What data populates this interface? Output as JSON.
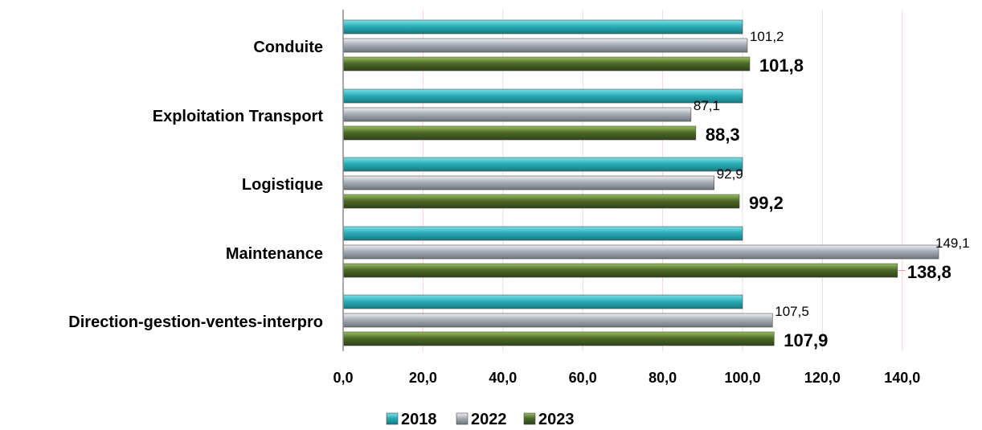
{
  "chart_data": {
    "type": "bar",
    "orientation": "horizontal",
    "categories": [
      "Conduite",
      "Exploitation Transport",
      "Logistique",
      "Maintenance",
      "Direction-gestion-ventes-interpro"
    ],
    "series": [
      {
        "name": "2018",
        "values": [
          100,
          100,
          100,
          100,
          100
        ],
        "color": "#2aaeb8"
      },
      {
        "name": "2022",
        "values": [
          101.2,
          87.1,
          92.9,
          149.1,
          107.5
        ],
        "color": "#a7aeb6",
        "value_labels": [
          "101,2",
          "87,1",
          "92,9",
          "149,1",
          "107,5"
        ]
      },
      {
        "name": "2023",
        "values": [
          101.8,
          88.3,
          99.2,
          138.8,
          107.9
        ],
        "color": "#4e6b2a",
        "value_labels": [
          "101,8",
          "88,3",
          "99,2",
          "138,8",
          "107,9"
        ]
      }
    ],
    "x_ticks": [
      "0,0",
      "20,0",
      "40,0",
      "60,0",
      "80,0",
      "100,0",
      "120,0",
      "140,0"
    ],
    "xlim": [
      0,
      150
    ],
    "grid": true,
    "legend_position": "bottom",
    "title": "",
    "xlabel": "",
    "ylabel": ""
  }
}
